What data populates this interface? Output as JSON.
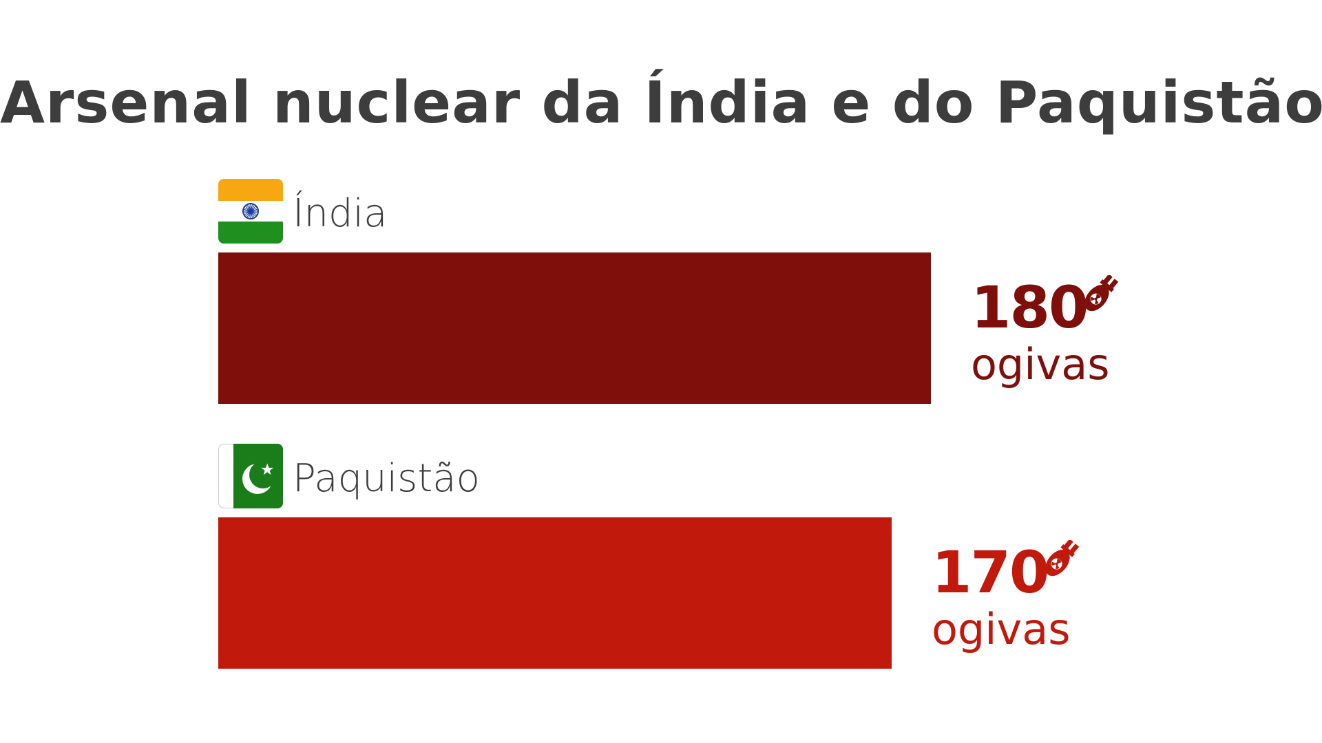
{
  "chart_data": {
    "type": "bar",
    "orientation": "horizontal",
    "title": "Arsenal nuclear da Índia e do Paquistão",
    "categories": [
      "Índia",
      "Paquistão"
    ],
    "values": [
      180,
      170
    ],
    "unit": "ogivas",
    "colors": [
      "#7e0f0a",
      "#c2190d"
    ],
    "value_labels": [
      "180",
      "170"
    ],
    "grid": false
  },
  "icons": {
    "flag_india": "india-flag-icon",
    "flag_pakistan": "pakistan-flag-icon",
    "warhead": "nuclear-bomb-icon"
  }
}
